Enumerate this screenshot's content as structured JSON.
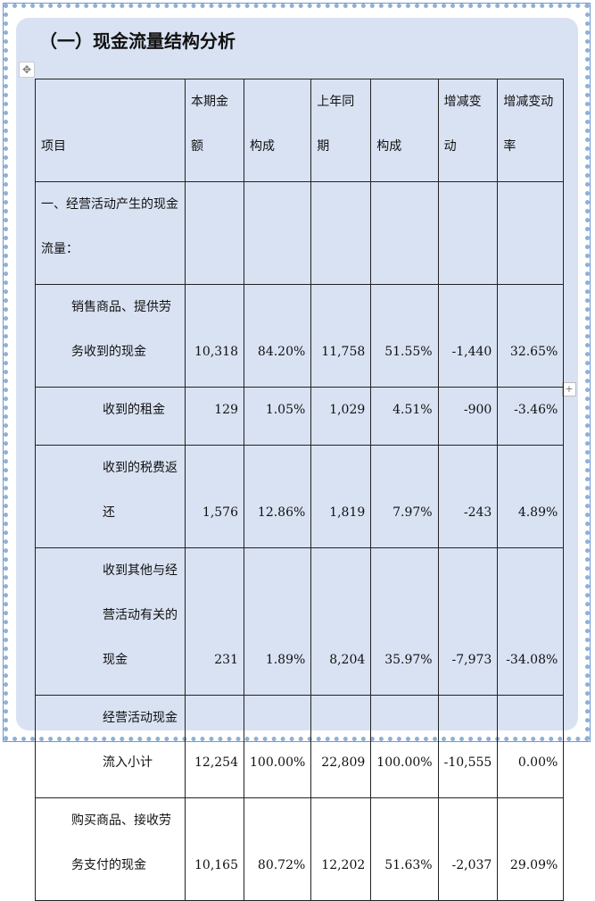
{
  "title": "（一）现金流量结构分析",
  "headers": [
    "项目",
    "本期金额",
    "构成",
    "上年同期",
    "构成",
    "增减变动",
    "增减变动率"
  ],
  "rows": [
    {
      "item": "一、经营活动产生的现金流量：",
      "cells": [
        "",
        "",
        "",
        "",
        "",
        ""
      ]
    },
    {
      "item": "销售商品、提供劳务收到的现金",
      "cells": [
        "10,318",
        "84.20%",
        "11,758",
        "51.55%",
        "-1,440",
        "32.65%"
      ]
    },
    {
      "item": "收到的租金",
      "cells": [
        "129",
        "1.05%",
        "1,029",
        "4.51%",
        "-900",
        "-3.46%"
      ]
    },
    {
      "item": "收到的税费返还",
      "cells": [
        "1,576",
        "12.86%",
        "1,819",
        "7.97%",
        "-243",
        "4.89%"
      ]
    },
    {
      "item": "收到其他与经营活动有关的现金",
      "cells": [
        "231",
        "1.89%",
        "8,204",
        "35.97%",
        "-7,973",
        "-34.08%"
      ]
    },
    {
      "item": "经营活动现金流入小计",
      "cells": [
        "12,254",
        "100.00%",
        "22,809",
        "100.00%",
        "-10,555",
        "0.00%"
      ]
    },
    {
      "item": "购买商品、接收劳务支付的现金",
      "cells": [
        "10,165",
        "80.72%",
        "12,202",
        "51.63%",
        "-2,037",
        "29.09%"
      ]
    }
  ]
}
